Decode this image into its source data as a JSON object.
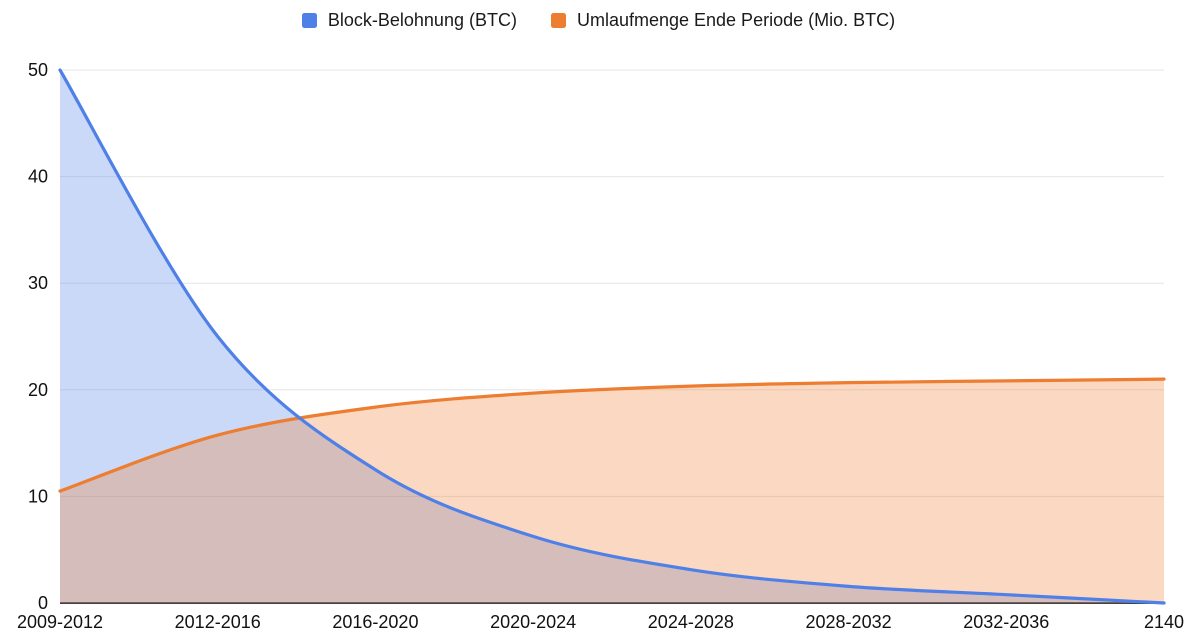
{
  "legend": {
    "items": [
      {
        "label": "Block-Belohnung (BTC)",
        "color": "#4e80e8"
      },
      {
        "label": "Umlaufmenge Ende Periode (Mio. BTC)",
        "color": "#ed7d31"
      }
    ]
  },
  "chart_data": {
    "type": "area",
    "categories": [
      "2009-2012",
      "2012-2016",
      "2016-2020",
      "2020-2024",
      "2024-2028",
      "2028-2032",
      "2032-2036",
      "2140"
    ],
    "series": [
      {
        "name": "Block-Belohnung (BTC)",
        "color": "#4e80e8",
        "fill_opacity": 0.3,
        "values": [
          50,
          25,
          12.5,
          6.25,
          3.125,
          1.5625,
          0.78125,
          0
        ]
      },
      {
        "name": "Umlaufmenge Ende Periode (Mio. BTC)",
        "color": "#ed7d31",
        "fill_opacity": 0.3,
        "values": [
          10.5,
          15.75,
          18.375,
          19.688,
          20.344,
          20.672,
          20.836,
          21
        ]
      }
    ],
    "ylim": [
      0,
      50
    ],
    "yticks": [
      0,
      10,
      20,
      30,
      40,
      50
    ],
    "grid": true,
    "smooth": true,
    "legend_position": "top",
    "line_width": 3.2,
    "colors": {
      "gridline": "#e6e6e6",
      "axis_line": "#424242",
      "axis_text": "#111111",
      "background": "#ffffff"
    }
  }
}
